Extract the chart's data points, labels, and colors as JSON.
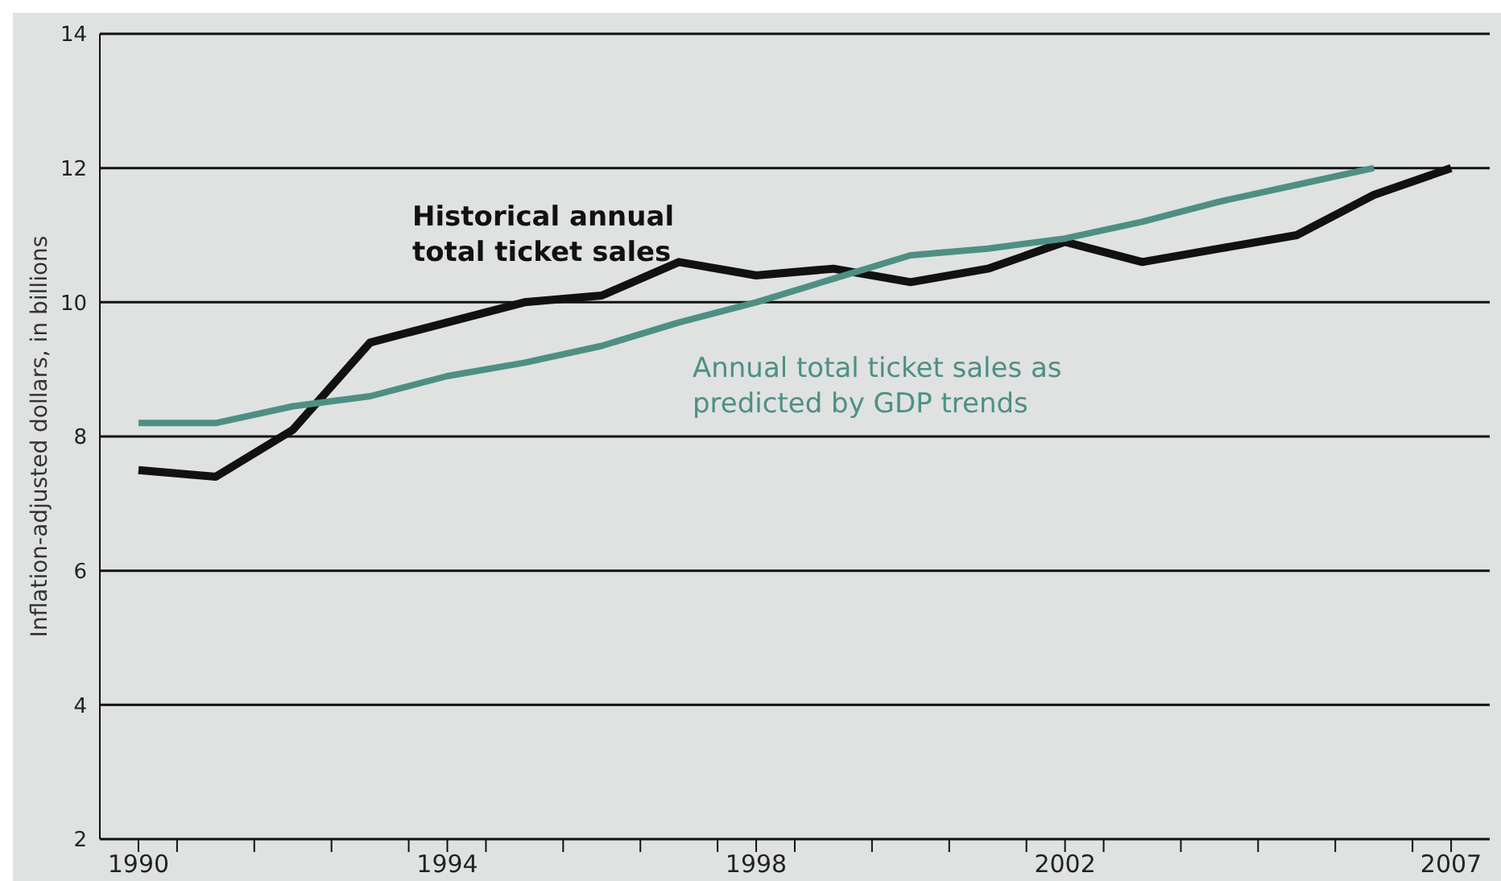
{
  "chart_data": {
    "type": "line",
    "ylabel": "Inflation-adjusted dollars, in billions",
    "x": [
      1990,
      1991,
      1992,
      1993,
      1994,
      1995,
      1996,
      1997,
      1998,
      1999,
      2000,
      2001,
      2002,
      2003,
      2004,
      2005,
      2006,
      2007
    ],
    "series": [
      {
        "name": "Historical annual total ticket sales",
        "color": "#111111",
        "values": [
          7.5,
          7.4,
          8.1,
          9.4,
          9.7,
          10.0,
          10.1,
          10.6,
          10.4,
          10.5,
          10.3,
          10.5,
          10.9,
          10.6,
          10.8,
          11.0,
          11.6,
          12.0
        ]
      },
      {
        "name": "Annual total ticket sales as predicted by GDP trends",
        "color": "#4e8f85",
        "values": [
          8.2,
          8.2,
          8.45,
          8.6,
          8.9,
          9.1,
          9.35,
          9.7,
          10.0,
          10.35,
          10.7,
          10.8,
          10.95,
          11.2,
          11.5,
          11.75,
          12.0,
          null
        ]
      }
    ],
    "xlim": [
      1989.5,
      2007.5
    ],
    "xticks": [
      1990,
      {
        "value": 1990.5,
        "label": null
      },
      {
        "value": 1991.5,
        "label": null
      },
      {
        "value": 1992.5,
        "label": null
      },
      {
        "value": 1993.5,
        "label": null
      },
      1994,
      {
        "value": 1994.5,
        "label": null
      },
      {
        "value": 1995.5,
        "label": null
      },
      {
        "value": 1996.5,
        "label": null
      },
      {
        "value": 1997.5,
        "label": null
      },
      1998,
      {
        "value": 1998.5,
        "label": null
      },
      {
        "value": 1999.5,
        "label": null
      },
      {
        "value": 2000.5,
        "label": null
      },
      {
        "value": 2001.5,
        "label": null
      },
      2002,
      {
        "value": 2002.5,
        "label": null
      },
      {
        "value": 2003.5,
        "label": null
      },
      {
        "value": 2004.5,
        "label": null
      },
      {
        "value": 2005.5,
        "label": null
      },
      {
        "value": 2006.5,
        "label": null
      },
      2007
    ],
    "ylim": [
      2,
      14
    ],
    "yticks": [
      2,
      4,
      6,
      8,
      10,
      12,
      14
    ],
    "grid": "y",
    "marker": "none",
    "line_style": "solid",
    "legend": false
  }
}
